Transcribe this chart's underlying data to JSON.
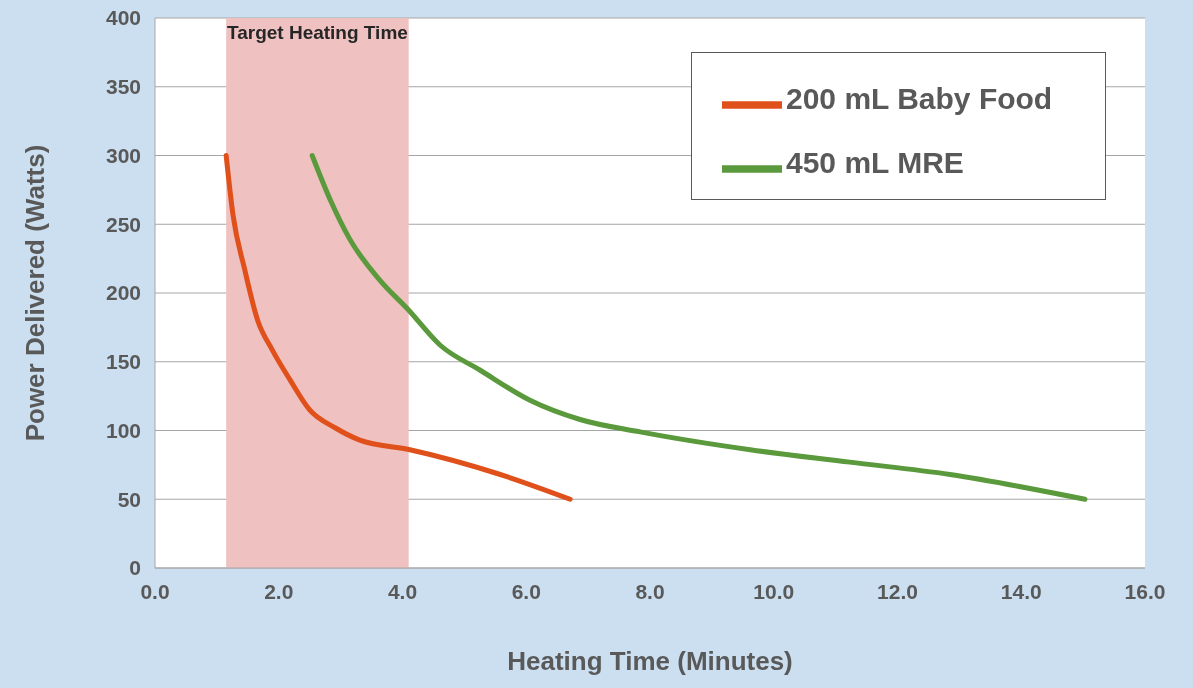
{
  "chart_data": {
    "type": "line",
    "xlabel": "Heating Time (Minutes)",
    "ylabel": "Power Delivered (Watts)",
    "xlim": [
      0,
      16
    ],
    "xticks": [
      {
        "value": 0,
        "label": "0.0"
      },
      {
        "value": 2,
        "label": "2.0"
      },
      {
        "value": 4,
        "label": "4.0"
      },
      {
        "value": 6,
        "label": "6.0"
      },
      {
        "value": 8,
        "label": "8.0"
      },
      {
        "value": 10,
        "label": "10.0"
      },
      {
        "value": 12,
        "label": "12.0"
      },
      {
        "value": 14,
        "label": "14.0"
      },
      {
        "value": 16,
        "label": "16.0"
      }
    ],
    "ylim": [
      0,
      400
    ],
    "yticks": [
      0,
      50,
      100,
      150,
      200,
      250,
      300,
      350,
      400
    ],
    "grid": "y",
    "legend": "top right",
    "bands": [
      {
        "axis": "x",
        "from": 1.15,
        "to": 4.1,
        "label": "Target Heating Time",
        "color": "#efc1c1"
      }
    ],
    "series": [
      {
        "name": "200 mL Baby Food",
        "color": "#e0501a",
        "x": [
          1.15,
          1.26,
          1.45,
          1.66,
          1.89,
          2.18,
          2.5,
          2.91,
          3.31,
          4.12,
          5.58,
          6.71
        ],
        "values": [
          300,
          257,
          217,
          180,
          159,
          137,
          115,
          102,
          93,
          86,
          68,
          50
        ]
      },
      {
        "name": "450 mL MRE",
        "color": "#5a9a3c",
        "x": [
          2.54,
          2.83,
          3.15,
          3.64,
          4.09,
          4.61,
          5.25,
          6.06,
          6.87,
          7.84,
          9.62,
          11.23,
          12.85,
          15.03
        ],
        "values": [
          300,
          268,
          239,
          209,
          188,
          162,
          144,
          122,
          108,
          99,
          86,
          77,
          68,
          50
        ]
      }
    ]
  }
}
